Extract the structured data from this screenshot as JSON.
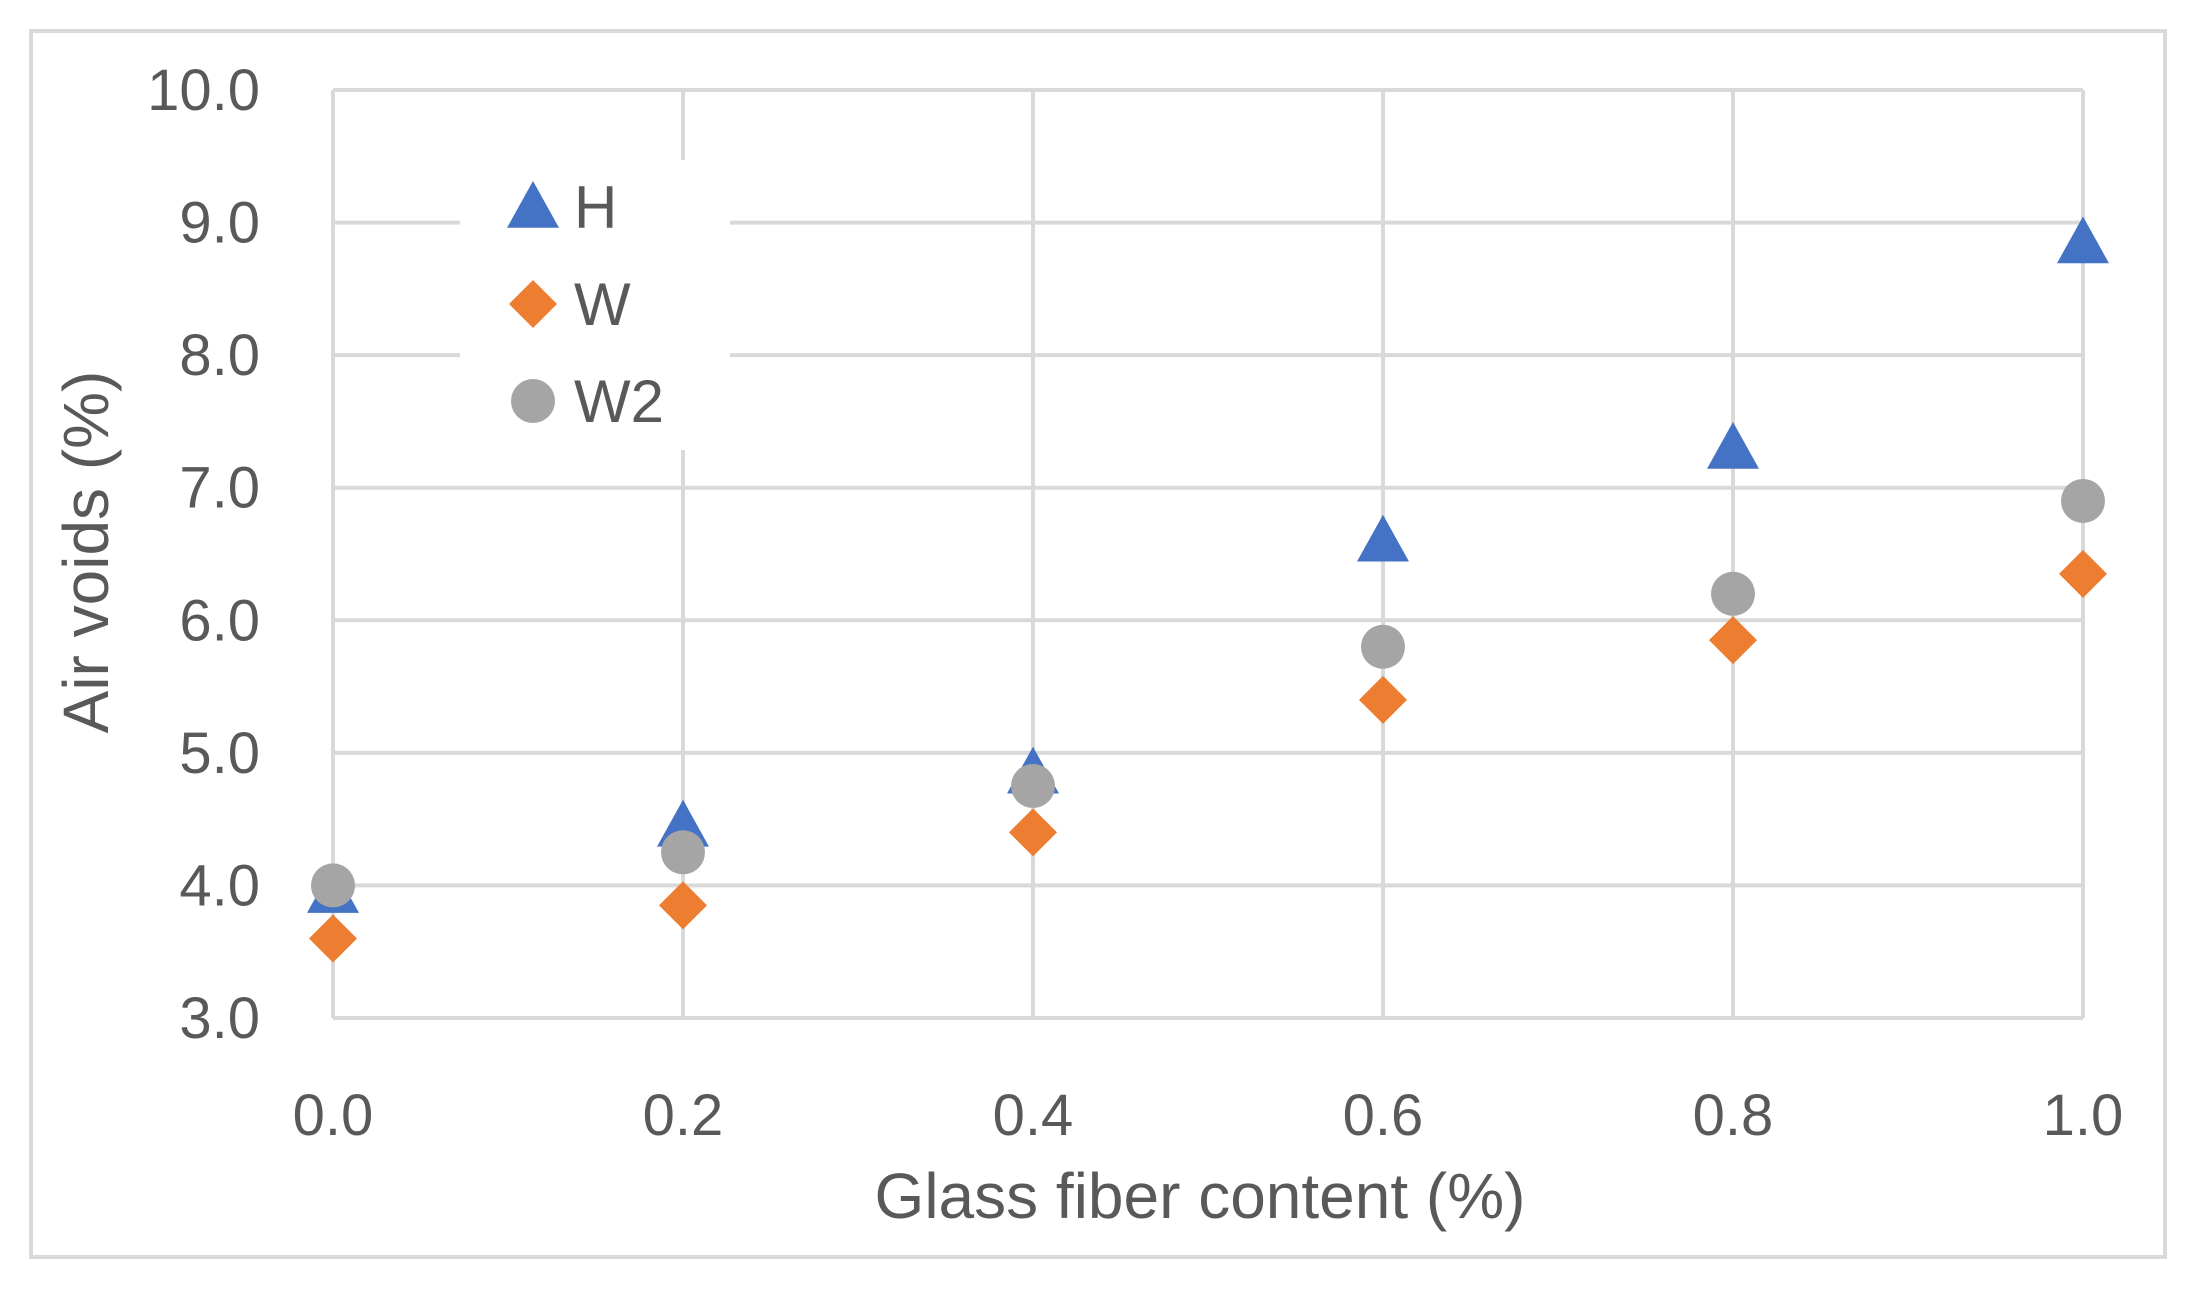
{
  "chart_data": {
    "type": "scatter",
    "title": "",
    "xlabel": "Glass fiber content (%)",
    "ylabel": "Air voids (%)",
    "xlim": [
      0.0,
      1.0
    ],
    "ylim": [
      3.0,
      10.0
    ],
    "x_ticks": [
      "0.0",
      "0.2",
      "0.4",
      "0.6",
      "0.8",
      "1.0"
    ],
    "y_ticks": [
      "3.0",
      "4.0",
      "5.0",
      "6.0",
      "7.0",
      "8.0",
      "9.0",
      "10.0"
    ],
    "grid": true,
    "legend_position": "top-left",
    "series": [
      {
        "name": "H",
        "marker": "triangle",
        "color": "#4472C4",
        "x": [
          0.0,
          0.2,
          0.4,
          0.6,
          0.8,
          1.0
        ],
        "y": [
          3.95,
          4.45,
          4.85,
          6.6,
          7.3,
          8.85
        ]
      },
      {
        "name": "W",
        "marker": "diamond",
        "color": "#ED7D31",
        "x": [
          0.0,
          0.2,
          0.4,
          0.6,
          0.8,
          1.0
        ],
        "y": [
          3.6,
          3.85,
          4.4,
          5.4,
          5.85,
          6.35
        ]
      },
      {
        "name": "W2",
        "marker": "circle",
        "color": "#A5A5A5",
        "x": [
          0.0,
          0.2,
          0.4,
          0.6,
          0.8,
          1.0
        ],
        "y": [
          4.0,
          4.25,
          4.75,
          5.8,
          6.2,
          6.9
        ]
      }
    ]
  }
}
